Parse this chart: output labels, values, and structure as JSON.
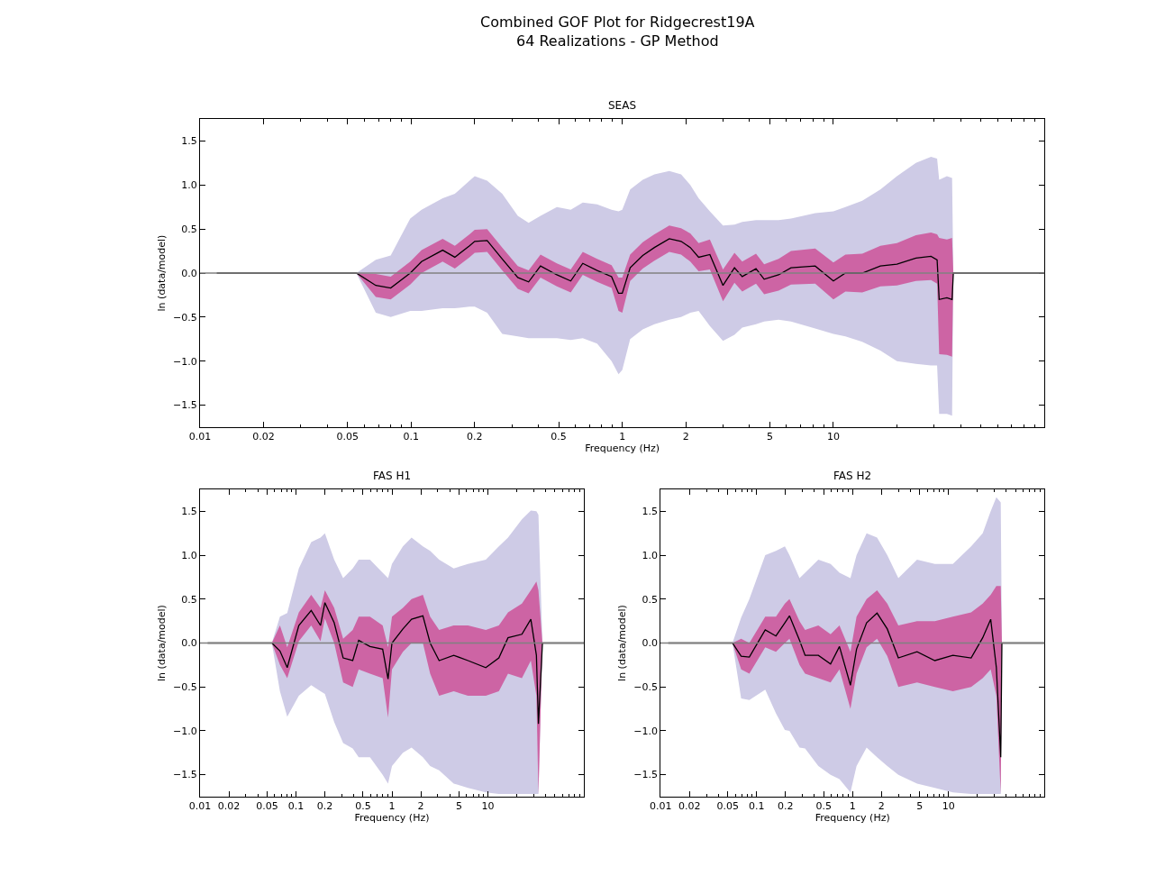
{
  "chart_data": [
    {
      "type": "line",
      "title": "Combined GOF Plot for Ridgecrest19A\n64 Realizations - GP Method",
      "subtitle": "SEAS",
      "xlabel": "Frequency (Hz)",
      "ylabel": "ln (data/model)",
      "log": "x",
      "xlim": [
        0.01,
        100
      ],
      "ylim": [
        -1.75,
        1.75
      ],
      "xticks": [
        0.01,
        0.02,
        0.05,
        0.1,
        0.2,
        0.5,
        1,
        2,
        5,
        10
      ],
      "yticks": [
        {
          "value": -1.5,
          "label": "−1.5"
        },
        {
          "value": -1,
          "label": "−1.0"
        },
        {
          "value": -0.5,
          "label": "−0.5"
        },
        {
          "value": 0,
          "label": "0.0"
        },
        {
          "value": 0.5,
          "label": "0.5"
        },
        {
          "value": 1,
          "label": "1.0"
        },
        {
          "value": 1.5,
          "label": "1.5"
        }
      ],
      "ref_lines": [
        {
          "axis": "y",
          "value": 0,
          "color": "#808080"
        }
      ],
      "x": [
        0.012,
        0.055,
        0.068,
        0.08,
        0.099,
        0.112,
        0.141,
        0.161,
        0.189,
        0.2,
        0.229,
        0.27,
        0.32,
        0.36,
        0.41,
        0.49,
        0.57,
        0.65,
        0.76,
        0.89,
        0.96,
        1.0,
        1.09,
        1.25,
        1.42,
        1.67,
        1.9,
        2.1,
        2.3,
        2.6,
        3.0,
        3.4,
        3.7,
        4.3,
        4.7,
        5.5,
        6.3,
        8.2,
        10,
        11.4,
        13.7,
        16.7,
        20,
        24.6,
        29,
        31,
        31.7,
        34.5,
        36.5,
        37,
        100
      ],
      "series": [
        {
          "color": "#cecbe6",
          "values": [
            null,
            null,
            null,
            null,
            null,
            null,
            null,
            null,
            null,
            null,
            null,
            null,
            null,
            null,
            null,
            null,
            null,
            null,
            null,
            null,
            null,
            null,
            null,
            null,
            null,
            null,
            null,
            null,
            null,
            null,
            null,
            null,
            null,
            null,
            null,
            null,
            null,
            null,
            null,
            null,
            null,
            null,
            null,
            null,
            null,
            null,
            null,
            null,
            null,
            null,
            null
          ],
          "lower": [
            0,
            0,
            -0.45,
            -0.5,
            -0.43,
            -0.43,
            -0.4,
            -0.4,
            -0.38,
            -0.38,
            -0.45,
            -0.69,
            -0.72,
            -0.74,
            -0.74,
            -0.74,
            -0.76,
            -0.74,
            -0.8,
            -1.0,
            -1.15,
            -1.1,
            -0.75,
            -0.64,
            -0.58,
            -0.53,
            -0.5,
            -0.45,
            -0.43,
            -0.6,
            -0.77,
            -0.7,
            -0.62,
            -0.58,
            -0.55,
            -0.53,
            -0.55,
            -0.63,
            -0.69,
            -0.72,
            -0.78,
            -0.88,
            -1.0,
            -1.03,
            -1.05,
            -1.05,
            -1.6,
            -1.6,
            -1.62,
            0,
            0
          ],
          "upper": [
            0,
            0,
            0.15,
            0.2,
            0.62,
            0.72,
            0.85,
            0.9,
            1.05,
            1.1,
            1.05,
            0.9,
            0.65,
            0.57,
            0.65,
            0.75,
            0.72,
            0.8,
            0.78,
            0.72,
            0.7,
            0.72,
            0.95,
            1.06,
            1.12,
            1.16,
            1.12,
            1.0,
            0.85,
            0.7,
            0.54,
            0.55,
            0.58,
            0.6,
            0.6,
            0.6,
            0.62,
            0.68,
            0.7,
            0.75,
            0.82,
            0.95,
            1.1,
            1.25,
            1.32,
            1.3,
            1.06,
            1.1,
            1.08,
            0,
            0
          ]
        },
        {
          "color": "#cd64a4",
          "values": [
            null,
            null,
            null,
            null,
            null,
            null,
            null,
            null,
            null,
            null,
            null,
            null,
            null,
            null,
            null,
            null,
            null,
            null,
            null,
            null,
            null,
            null,
            null,
            null,
            null,
            null,
            null,
            null,
            null,
            null,
            null,
            null,
            null,
            null,
            null,
            null,
            null,
            null,
            null,
            null,
            null,
            null,
            null,
            null,
            null,
            null,
            null,
            null,
            null,
            null,
            null
          ],
          "lower": [
            0,
            0,
            -0.27,
            -0.3,
            -0.13,
            0,
            0.13,
            0.05,
            0.18,
            0.23,
            0.24,
            0.03,
            -0.18,
            -0.23,
            -0.05,
            -0.15,
            -0.22,
            -0.02,
            -0.1,
            -0.17,
            -0.43,
            -0.45,
            -0.09,
            0.05,
            0.14,
            0.24,
            0.21,
            0.13,
            0.02,
            0.04,
            -0.32,
            -0.11,
            -0.21,
            -0.12,
            -0.24,
            -0.2,
            -0.13,
            -0.12,
            -0.3,
            -0.21,
            -0.22,
            -0.15,
            -0.14,
            -0.09,
            -0.08,
            -0.12,
            -0.92,
            -0.93,
            -0.95,
            0,
            0
          ],
          "upper": [
            0,
            0,
            -0.01,
            -0.04,
            0.13,
            0.26,
            0.39,
            0.31,
            0.44,
            0.49,
            0.5,
            0.29,
            0.08,
            0.03,
            0.21,
            0.11,
            0.04,
            0.24,
            0.16,
            0.09,
            -0.05,
            -0.05,
            0.21,
            0.35,
            0.44,
            0.54,
            0.51,
            0.45,
            0.34,
            0.38,
            0.04,
            0.23,
            0.13,
            0.22,
            0.1,
            0.16,
            0.25,
            0.28,
            0.12,
            0.21,
            0.22,
            0.31,
            0.34,
            0.43,
            0.46,
            0.44,
            0.4,
            0.38,
            0.4,
            0,
            0
          ]
        },
        {
          "color": "#000000",
          "values": [
            0,
            0,
            -0.14,
            -0.17,
            0,
            0.13,
            0.26,
            0.18,
            0.31,
            0.36,
            0.37,
            0.16,
            -0.05,
            -0.1,
            0.08,
            -0.02,
            -0.09,
            0.11,
            0.03,
            -0.04,
            -0.23,
            -0.23,
            0.06,
            0.2,
            0.29,
            0.39,
            0.36,
            0.29,
            0.18,
            0.21,
            -0.14,
            0.06,
            -0.04,
            0.05,
            -0.07,
            -0.02,
            0.06,
            0.08,
            -0.09,
            0,
            0,
            0.08,
            0.1,
            0.17,
            0.19,
            0.15,
            -0.3,
            -0.28,
            -0.3,
            0,
            0
          ]
        }
      ]
    },
    {
      "type": "line",
      "title": "FAS H1",
      "xlabel": "Frequency (Hz)",
      "ylabel": "ln (data/model)",
      "log": "x",
      "xlim": [
        0.01,
        100
      ],
      "ylim": [
        -1.75,
        1.75
      ],
      "xticks": [
        0.01,
        0.02,
        0.05,
        0.1,
        0.2,
        0.5,
        1,
        2,
        5,
        10
      ],
      "yticks": [
        {
          "value": -1.5,
          "label": "−1.5"
        },
        {
          "value": -1,
          "label": "−1.0"
        },
        {
          "value": -0.5,
          "label": "−0.5"
        },
        {
          "value": 0,
          "label": "0.0"
        },
        {
          "value": 0.5,
          "label": "0.5"
        },
        {
          "value": 1,
          "label": "1.0"
        },
        {
          "value": 1.5,
          "label": "1.5"
        }
      ],
      "ref_lines": [
        {
          "axis": "y",
          "value": 0,
          "color": "#808080"
        }
      ],
      "x": [
        0.012,
        0.056,
        0.068,
        0.081,
        0.107,
        0.144,
        0.18,
        0.2,
        0.25,
        0.31,
        0.39,
        0.45,
        0.59,
        0.8,
        0.91,
        1.0,
        1.3,
        1.6,
        2.1,
        2.5,
        3.1,
        4.4,
        6.2,
        9.5,
        13,
        16.2,
        22.6,
        28,
        32,
        33.6,
        37,
        100
      ],
      "series": [
        {
          "color": "#cecbe6",
          "values": [
            null,
            null,
            null,
            null,
            null,
            null,
            null,
            null,
            null,
            null,
            null,
            null,
            null,
            null,
            null,
            null,
            null,
            null,
            null,
            null,
            null,
            null,
            null,
            null,
            null,
            null,
            null,
            null,
            null,
            null,
            null,
            null
          ],
          "lower": [
            0,
            0,
            -0.55,
            -0.84,
            -0.6,
            -0.48,
            -0.55,
            -0.58,
            -0.9,
            -1.14,
            -1.2,
            -1.3,
            -1.3,
            -1.5,
            -1.6,
            -1.4,
            -1.25,
            -1.19,
            -1.3,
            -1.4,
            -1.45,
            -1.6,
            -1.65,
            -1.7,
            -1.72,
            -1.72,
            -1.72,
            -1.72,
            -1.72,
            -1.72,
            0,
            0
          ],
          "upper": [
            0,
            0,
            0.3,
            0.34,
            0.85,
            1.15,
            1.2,
            1.25,
            0.95,
            0.74,
            0.85,
            0.95,
            0.95,
            0.8,
            0.74,
            0.9,
            1.1,
            1.2,
            1.1,
            1.05,
            0.95,
            0.85,
            0.9,
            0.95,
            1.1,
            1.2,
            1.41,
            1.51,
            1.5,
            1.46,
            0,
            0
          ]
        },
        {
          "color": "#cd64a4",
          "values": [
            null,
            null,
            null,
            null,
            null,
            null,
            null,
            null,
            null,
            null,
            null,
            null,
            null,
            null,
            null,
            null,
            null,
            null,
            null,
            null,
            null,
            null,
            null,
            null,
            null,
            null,
            null,
            null,
            null,
            null,
            null,
            null
          ],
          "lower": [
            0,
            0,
            -0.25,
            -0.4,
            0.02,
            0.2,
            0.02,
            0.28,
            0.0,
            -0.45,
            -0.5,
            -0.3,
            -0.35,
            -0.4,
            -0.85,
            -0.3,
            -0.1,
            0.0,
            0.0,
            -0.35,
            -0.6,
            -0.55,
            -0.6,
            -0.6,
            -0.55,
            -0.35,
            -0.4,
            -0.2,
            -0.6,
            -1.72,
            0,
            0
          ],
          "upper": [
            0,
            0,
            0.2,
            -0.05,
            0.35,
            0.55,
            0.4,
            0.6,
            0.4,
            0.05,
            0.15,
            0.3,
            0.3,
            0.2,
            -0.05,
            0.3,
            0.4,
            0.5,
            0.55,
            0.3,
            0.15,
            0.2,
            0.2,
            0.15,
            0.2,
            0.35,
            0.45,
            0.6,
            0.7,
            0.6,
            0,
            0
          ]
        },
        {
          "color": "#000000",
          "values": [
            0,
            0,
            -0.09,
            -0.28,
            0.2,
            0.37,
            0.2,
            0.46,
            0.23,
            -0.17,
            -0.2,
            0.03,
            -0.04,
            -0.07,
            -0.41,
            0,
            0.16,
            0.27,
            0.31,
            0,
            -0.2,
            -0.14,
            -0.2,
            -0.28,
            -0.17,
            0.06,
            0.1,
            0.27,
            -0.14,
            -0.92,
            0,
            0
          ]
        }
      ]
    },
    {
      "type": "line",
      "title": "FAS H2",
      "xlabel": "Frequency (Hz)",
      "ylabel": "ln (data/model)",
      "log": "x",
      "xlim": [
        0.01,
        100
      ],
      "ylim": [
        -1.75,
        1.75
      ],
      "xticks": [
        0.01,
        0.02,
        0.05,
        0.1,
        0.2,
        0.5,
        1,
        2,
        5,
        10
      ],
      "yticks": [
        {
          "value": -1.5,
          "label": "−1.5"
        },
        {
          "value": -1,
          "label": "−1.0"
        },
        {
          "value": -0.5,
          "label": "−0.5"
        },
        {
          "value": 0,
          "label": "0.0"
        },
        {
          "value": 0.5,
          "label": "0.5"
        },
        {
          "value": 1,
          "label": "1.0"
        },
        {
          "value": 1.5,
          "label": "1.5"
        }
      ],
      "ref_lines": [
        {
          "axis": "y",
          "value": 0,
          "color": "#808080"
        }
      ],
      "x": [
        0.012,
        0.056,
        0.069,
        0.084,
        0.123,
        0.159,
        0.197,
        0.22,
        0.28,
        0.32,
        0.44,
        0.59,
        0.73,
        0.95,
        1.1,
        1.4,
        1.8,
        2.3,
        3.0,
        4.7,
        7.2,
        11.1,
        17.2,
        22.7,
        27.5,
        31.5,
        35,
        36,
        100
      ],
      "series": [
        {
          "color": "#cecbe6",
          "values": [
            null,
            null,
            null,
            null,
            null,
            null,
            null,
            null,
            null,
            null,
            null,
            null,
            null,
            null,
            null,
            null,
            null,
            null,
            null,
            null,
            null,
            null,
            null,
            null,
            null,
            null,
            null,
            null,
            null
          ],
          "lower": [
            0,
            0,
            -0.63,
            -0.65,
            -0.53,
            -0.8,
            -0.99,
            -1.0,
            -1.19,
            -1.2,
            -1.4,
            -1.5,
            -1.55,
            -1.7,
            -1.4,
            -1.19,
            -1.3,
            -1.4,
            -1.5,
            -1.6,
            -1.65,
            -1.7,
            -1.72,
            -1.72,
            -1.72,
            -1.72,
            -1.72,
            0,
            0
          ],
          "upper": [
            0,
            0,
            0.29,
            0.5,
            1.0,
            1.05,
            1.1,
            1.0,
            0.74,
            0.8,
            0.95,
            0.9,
            0.8,
            0.74,
            1.0,
            1.25,
            1.2,
            1.0,
            0.74,
            0.95,
            0.9,
            0.9,
            1.1,
            1.25,
            1.5,
            1.66,
            1.6,
            0,
            0
          ]
        },
        {
          "color": "#cd64a4",
          "values": [
            null,
            null,
            null,
            null,
            null,
            null,
            null,
            null,
            null,
            null,
            null,
            null,
            null,
            null,
            null,
            null,
            null,
            null,
            null,
            null,
            null,
            null,
            null,
            null,
            null,
            null,
            null,
            null,
            null
          ],
          "lower": [
            0,
            0,
            -0.3,
            -0.35,
            -0.05,
            -0.1,
            0.0,
            0.05,
            -0.25,
            -0.35,
            -0.4,
            -0.45,
            -0.3,
            -0.75,
            -0.35,
            -0.05,
            0.05,
            -0.15,
            -0.5,
            -0.45,
            -0.5,
            -0.55,
            -0.5,
            -0.4,
            -0.3,
            -0.6,
            -1.72,
            0,
            0
          ],
          "upper": [
            0,
            0,
            0.05,
            0.0,
            0.3,
            0.3,
            0.45,
            0.5,
            0.25,
            0.15,
            0.2,
            0.1,
            0.2,
            -0.1,
            0.3,
            0.5,
            0.6,
            0.45,
            0.2,
            0.25,
            0.25,
            0.3,
            0.35,
            0.45,
            0.55,
            0.65,
            0.65,
            0,
            0
          ]
        },
        {
          "color": "#000000",
          "values": [
            0,
            0,
            -0.15,
            -0.16,
            0.15,
            0.08,
            0.23,
            0.31,
            0.03,
            -0.14,
            -0.14,
            -0.24,
            -0.04,
            -0.48,
            -0.07,
            0.23,
            0.34,
            0.16,
            -0.17,
            -0.1,
            -0.2,
            -0.14,
            -0.17,
            0.06,
            0.27,
            -0.28,
            -1.3,
            0,
            0
          ]
        }
      ]
    }
  ]
}
